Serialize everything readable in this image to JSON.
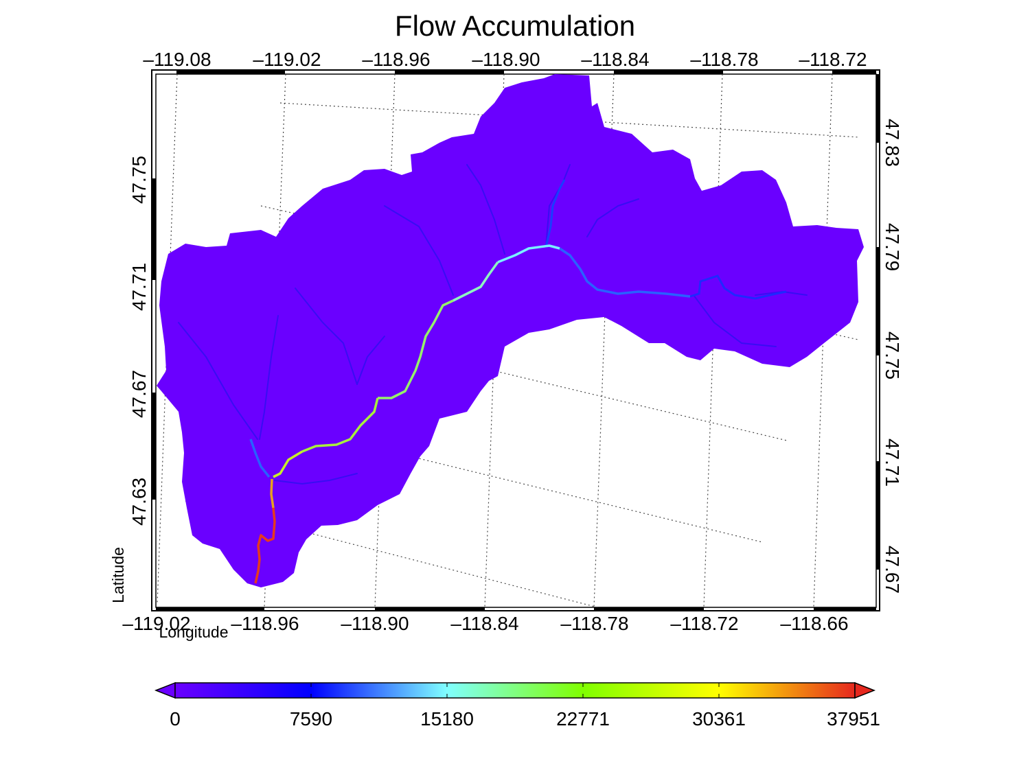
{
  "title": "Flow Accumulation",
  "map": {
    "x_axis_label": "Longitude",
    "y_axis_label": "Latitude",
    "top_ticks": [
      "–119.08",
      "–119.02",
      "–118.96",
      "–118.90",
      "–118.84",
      "–118.78",
      "–118.72"
    ],
    "bottom_ticks": [
      "–119.02",
      "–118.96",
      "–118.90",
      "–118.84",
      "–118.78",
      "–118.72",
      "–118.66"
    ],
    "left_ticks": [
      "47.75",
      "47.71",
      "47.67",
      "47.63"
    ],
    "right_ticks": [
      "47.83",
      "47.79",
      "47.75",
      "47.71",
      "47.67"
    ],
    "gridlines": "dotted",
    "projection_note": "rotated lat/lon grid"
  },
  "colorbar": {
    "labels": [
      "0",
      "7590",
      "15180",
      "22771",
      "30361",
      "37951"
    ],
    "min": 0,
    "max": 37951,
    "colormap": [
      "#6a00ff",
      "#0000ff",
      "#80ffff",
      "#80ff00",
      "#ffff00",
      "#e6281e"
    ],
    "extend": "both"
  },
  "colors": {
    "basin_fill": "#6a00ff",
    "tributary": "#3a1cf0",
    "frame": "#000000"
  }
}
